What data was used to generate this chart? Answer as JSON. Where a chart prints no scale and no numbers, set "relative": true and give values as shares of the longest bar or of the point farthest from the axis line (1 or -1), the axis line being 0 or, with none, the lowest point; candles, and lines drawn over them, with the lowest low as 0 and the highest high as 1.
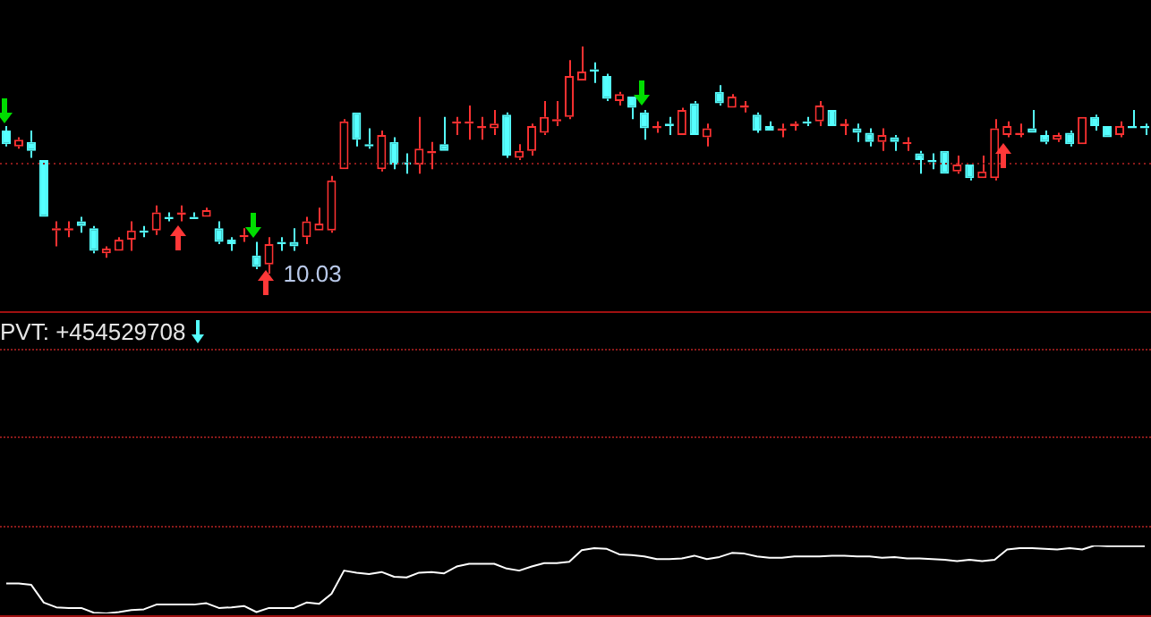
{
  "chart_data": [
    {
      "type": "candlestick",
      "relative": true,
      "legend": false,
      "categories": [
        null,
        null,
        null,
        null,
        null,
        null,
        null,
        null,
        null,
        null,
        null,
        null,
        null,
        null,
        null,
        null,
        null,
        null,
        null,
        null,
        null,
        null,
        null,
        null,
        null,
        null,
        null,
        null,
        null,
        null,
        null,
        null,
        null,
        null,
        null,
        null,
        null,
        null,
        null,
        null,
        null,
        null,
        null,
        null,
        null,
        null,
        null,
        null,
        null,
        null,
        null,
        null,
        null,
        null,
        null,
        null,
        null,
        null,
        null,
        null,
        null,
        null,
        null,
        null,
        null,
        null,
        null,
        null,
        null,
        null,
        null,
        null,
        null,
        null,
        null,
        null,
        null,
        null,
        null,
        null,
        null,
        null,
        null,
        null,
        null,
        null,
        null,
        null,
        null,
        null,
        null,
        null
      ],
      "ohlc": [
        [
          0.63,
          0.65,
          0.56,
          0.57
        ],
        [
          0.56,
          0.6,
          0.55,
          0.59
        ],
        [
          0.58,
          0.63,
          0.51,
          0.54
        ],
        [
          0.5,
          0.5,
          0.25,
          0.25
        ],
        [
          0.19,
          0.23,
          0.12,
          0.2
        ],
        [
          0.19,
          0.23,
          0.16,
          0.2
        ],
        [
          0.23,
          0.25,
          0.18,
          0.21
        ],
        [
          0.2,
          0.21,
          0.09,
          0.1
        ],
        [
          0.09,
          0.12,
          0.07,
          0.11
        ],
        [
          0.1,
          0.16,
          0.1,
          0.15
        ],
        [
          0.15,
          0.23,
          0.1,
          0.19
        ],
        [
          0.19,
          0.21,
          0.16,
          0.18
        ],
        [
          0.19,
          0.3,
          0.17,
          0.27
        ],
        [
          0.25,
          0.27,
          0.23,
          0.24
        ],
        [
          0.26,
          0.3,
          0.23,
          0.27
        ],
        [
          0.25,
          0.27,
          0.24,
          0.24
        ],
        [
          0.25,
          0.29,
          0.25,
          0.28
        ],
        [
          0.2,
          0.23,
          0.13,
          0.14
        ],
        [
          0.15,
          0.16,
          0.1,
          0.13
        ],
        [
          0.16,
          0.2,
          0.14,
          0.17
        ],
        [
          0.08,
          0.14,
          0.02,
          0.03
        ],
        [
          0.04,
          0.16,
          0,
          0.13
        ],
        [
          0.14,
          0.16,
          0.1,
          0.13
        ],
        [
          0.14,
          0.2,
          0.1,
          0.12
        ],
        [
          0.16,
          0.25,
          0.13,
          0.23
        ],
        [
          0.19,
          0.29,
          0.19,
          0.22
        ],
        [
          0.19,
          0.43,
          0.18,
          0.41
        ],
        [
          0.46,
          0.68,
          0.46,
          0.67
        ],
        [
          0.71,
          0.71,
          0.56,
          0.59
        ],
        [
          0.57,
          0.64,
          0.55,
          0.56
        ],
        [
          0.46,
          0.63,
          0.45,
          0.61
        ],
        [
          0.58,
          0.6,
          0.46,
          0.48
        ],
        [
          0.49,
          0.53,
          0.44,
          0.48
        ],
        [
          0.48,
          0.69,
          0.44,
          0.55
        ],
        [
          0.53,
          0.58,
          0.46,
          0.54
        ],
        [
          0.57,
          0.69,
          0.54,
          0.54
        ],
        [
          0.66,
          0.69,
          0.61,
          0.67
        ],
        [
          0.66,
          0.74,
          0.59,
          0.67
        ],
        [
          0.64,
          0.69,
          0.59,
          0.65
        ],
        [
          0.64,
          0.72,
          0.61,
          0.66
        ],
        [
          0.7,
          0.71,
          0.51,
          0.52
        ],
        [
          0.51,
          0.57,
          0.5,
          0.54
        ],
        [
          0.54,
          0.66,
          0.52,
          0.65
        ],
        [
          0.62,
          0.76,
          0.61,
          0.69
        ],
        [
          0.67,
          0.76,
          0.65,
          0.68
        ],
        [
          0.69,
          0.94,
          0.68,
          0.87
        ],
        [
          0.85,
          1,
          0.85,
          0.89
        ],
        [
          0.9,
          0.93,
          0.84,
          0.89
        ],
        [
          0.87,
          0.88,
          0.76,
          0.77
        ],
        [
          0.76,
          0.8,
          0.74,
          0.79
        ],
        [
          0.78,
          0.78,
          0.68,
          0.73
        ],
        [
          0.71,
          0.72,
          0.59,
          0.64
        ],
        [
          0.64,
          0.67,
          0.62,
          0.65
        ],
        [
          0.66,
          0.69,
          0.61,
          0.65
        ],
        [
          0.61,
          0.73,
          0.61,
          0.72
        ],
        [
          0.75,
          0.76,
          0.61,
          0.61
        ],
        [
          0.6,
          0.66,
          0.56,
          0.64
        ],
        [
          0.8,
          0.83,
          0.74,
          0.75
        ],
        [
          0.73,
          0.79,
          0.73,
          0.78
        ],
        [
          0.73,
          0.76,
          0.71,
          0.74
        ],
        [
          0.7,
          0.71,
          0.62,
          0.63
        ],
        [
          0.65,
          0.67,
          0.63,
          0.63
        ],
        [
          0.63,
          0.66,
          0.6,
          0.64
        ],
        [
          0.65,
          0.67,
          0.63,
          0.66
        ],
        [
          0.67,
          0.69,
          0.65,
          0.66
        ],
        [
          0.67,
          0.76,
          0.65,
          0.74
        ],
        [
          0.72,
          0.72,
          0.65,
          0.65
        ],
        [
          0.65,
          0.68,
          0.61,
          0.66
        ],
        [
          0.64,
          0.66,
          0.58,
          0.62
        ],
        [
          0.62,
          0.64,
          0.56,
          0.58
        ],
        [
          0.58,
          0.64,
          0.54,
          0.61
        ],
        [
          0.6,
          0.61,
          0.54,
          0.58
        ],
        [
          0.57,
          0.6,
          0.54,
          0.58
        ],
        [
          0.53,
          0.54,
          0.44,
          0.5
        ],
        [
          0.5,
          0.53,
          0.46,
          0.49
        ],
        [
          0.54,
          0.54,
          0.44,
          0.44
        ],
        [
          0.45,
          0.52,
          0.44,
          0.48
        ],
        [
          0.48,
          0.48,
          0.41,
          0.42
        ],
        [
          0.42,
          0.52,
          0.42,
          0.45
        ],
        [
          0.42,
          0.68,
          0.41,
          0.64
        ],
        [
          0.61,
          0.67,
          0.6,
          0.65
        ],
        [
          0.61,
          0.66,
          0.6,
          0.62
        ],
        [
          0.64,
          0.72,
          0.62,
          0.62
        ],
        [
          0.61,
          0.63,
          0.57,
          0.58
        ],
        [
          0.59,
          0.62,
          0.58,
          0.61
        ],
        [
          0.62,
          0.63,
          0.56,
          0.57
        ],
        [
          0.57,
          0.69,
          0.57,
          0.69
        ],
        [
          0.69,
          0.7,
          0.63,
          0.65
        ],
        [
          0.65,
          0.65,
          0.6,
          0.6
        ],
        [
          0.61,
          0.67,
          0.6,
          0.65
        ],
        [
          0.65,
          0.72,
          0.64,
          0.64
        ],
        [
          0.65,
          0.66,
          0.61,
          0.64
        ]
      ],
      "ref_lines": [
        {
          "axis": "y",
          "value": 0.49,
          "color": "#8b1a1a",
          "line_style": "dotted"
        }
      ],
      "annotations": [
        "10.03"
      ]
    },
    {
      "type": "line",
      "relative": true,
      "title": "PVT: +454529708",
      "legend": false,
      "marker": "none",
      "categories": [
        null,
        null,
        null,
        null,
        null,
        null,
        null,
        null,
        null,
        null,
        null,
        null,
        null,
        null,
        null,
        null,
        null,
        null,
        null,
        null,
        null,
        null,
        null,
        null,
        null,
        null,
        null,
        null,
        null,
        null,
        null,
        null,
        null,
        null,
        null,
        null,
        null,
        null,
        null,
        null,
        null,
        null,
        null,
        null,
        null,
        null,
        null,
        null,
        null,
        null,
        null,
        null,
        null,
        null,
        null,
        null,
        null,
        null,
        null,
        null,
        null,
        null,
        null,
        null,
        null,
        null,
        null,
        null,
        null,
        null,
        null,
        null,
        null,
        null,
        null,
        null,
        null,
        null,
        null,
        null,
        null,
        null,
        null,
        null,
        null,
        null,
        null,
        null,
        null,
        null,
        null,
        null
      ],
      "series": [
        {
          "color": "#ffffff",
          "values": [
            0.44,
            0.44,
            0.42,
            0.16,
            0.09,
            0.08,
            0.08,
            0.01,
            0,
            0.02,
            0.05,
            0.06,
            0.13,
            0.13,
            0.13,
            0.13,
            0.15,
            0.08,
            0.09,
            0.11,
            0.02,
            0.08,
            0.08,
            0.08,
            0.16,
            0.14,
            0.29,
            0.63,
            0.6,
            0.58,
            0.61,
            0.54,
            0.53,
            0.6,
            0.61,
            0.59,
            0.69,
            0.73,
            0.73,
            0.73,
            0.66,
            0.63,
            0.69,
            0.74,
            0.74,
            0.76,
            0.93,
            0.96,
            0.95,
            0.87,
            0.86,
            0.84,
            0.8,
            0.8,
            0.81,
            0.85,
            0.8,
            0.83,
            0.89,
            0.88,
            0.84,
            0.82,
            0.82,
            0.84,
            0.84,
            0.84,
            0.85,
            0.85,
            0.84,
            0.84,
            0.82,
            0.83,
            0.81,
            0.81,
            0.8,
            0.79,
            0.77,
            0.79,
            0.77,
            0.79,
            0.94,
            0.96,
            0.96,
            0.95,
            0.94,
            0.96,
            0.94,
            1,
            0.99,
            0.99,
            0.99,
            0.99
          ]
        }
      ]
    }
  ]
}
